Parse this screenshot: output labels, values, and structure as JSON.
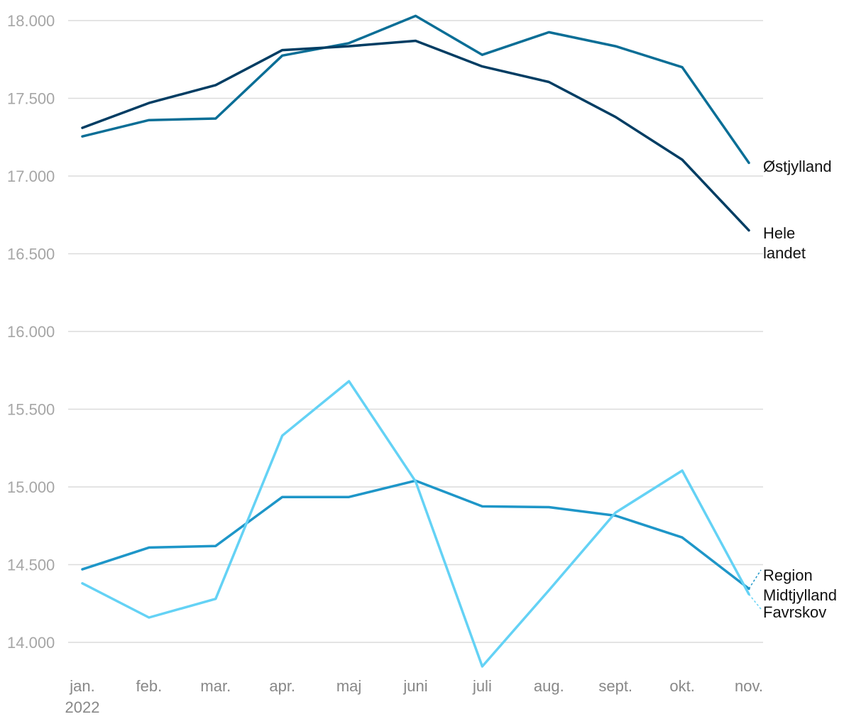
{
  "chart_data": {
    "type": "line",
    "title": "",
    "xlabel": "",
    "ylabel": "",
    "categories": [
      "jan.",
      "feb.",
      "mar.",
      "apr.",
      "maj",
      "juni",
      "juli",
      "aug.",
      "sept.",
      "okt.",
      "nov."
    ],
    "first_category_sublabel": "2022",
    "ylim": [
      14000,
      18000
    ],
    "yticks": [
      14000,
      14500,
      15000,
      15500,
      16000,
      16500,
      17000,
      17500,
      18000
    ],
    "ytick_labels": [
      "14.000",
      "14.500",
      "15.000",
      "15.500",
      "16.000",
      "16.500",
      "17.000",
      "17.500",
      "18.000"
    ],
    "grid": true,
    "series": [
      {
        "name": "Østjylland",
        "label_lines": [
          "Østjylland"
        ],
        "color": "#0a6e96",
        "values": [
          17255,
          17360,
          17370,
          17775,
          17855,
          18030,
          17780,
          17925,
          17835,
          17700,
          17085
        ]
      },
      {
        "name": "Hele landet",
        "label_lines": [
          "Hele",
          "landet"
        ],
        "color": "#003d63",
        "values": [
          17310,
          17470,
          17585,
          17810,
          17835,
          17870,
          17705,
          17605,
          17380,
          17105,
          16650
        ]
      },
      {
        "name": "Region Midtjylland",
        "label_lines": [
          "Region",
          "Midtjylland"
        ],
        "color": "#1e96c8",
        "values": [
          14470,
          14610,
          14620,
          14935,
          14935,
          15040,
          14875,
          14870,
          14815,
          14675,
          14345
        ]
      },
      {
        "name": "Favrskov",
        "label_lines": [
          "Favrskov"
        ],
        "color": "#64d2f5",
        "values": [
          14380,
          14160,
          14280,
          15330,
          15680,
          15035,
          13845,
          14335,
          14835,
          15105,
          14310
        ]
      }
    ]
  }
}
